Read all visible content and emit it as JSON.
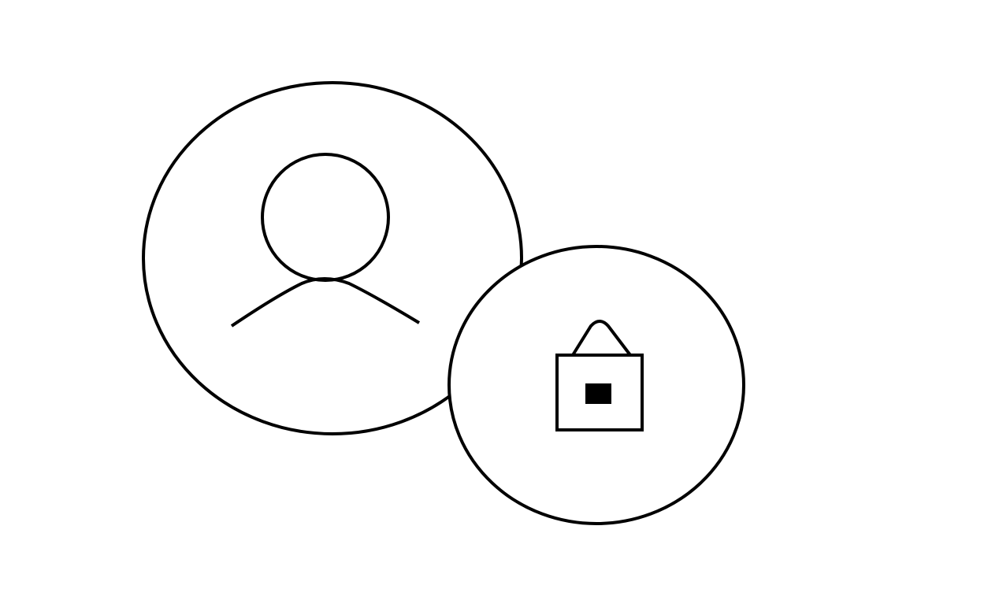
{
  "icons": {
    "user": {
      "name": "user-icon",
      "stroke": "#000000",
      "fill": "#ffffff"
    },
    "lock": {
      "name": "lock-icon",
      "stroke": "#000000",
      "fill": "#ffffff",
      "keyhole": "#000000"
    }
  }
}
